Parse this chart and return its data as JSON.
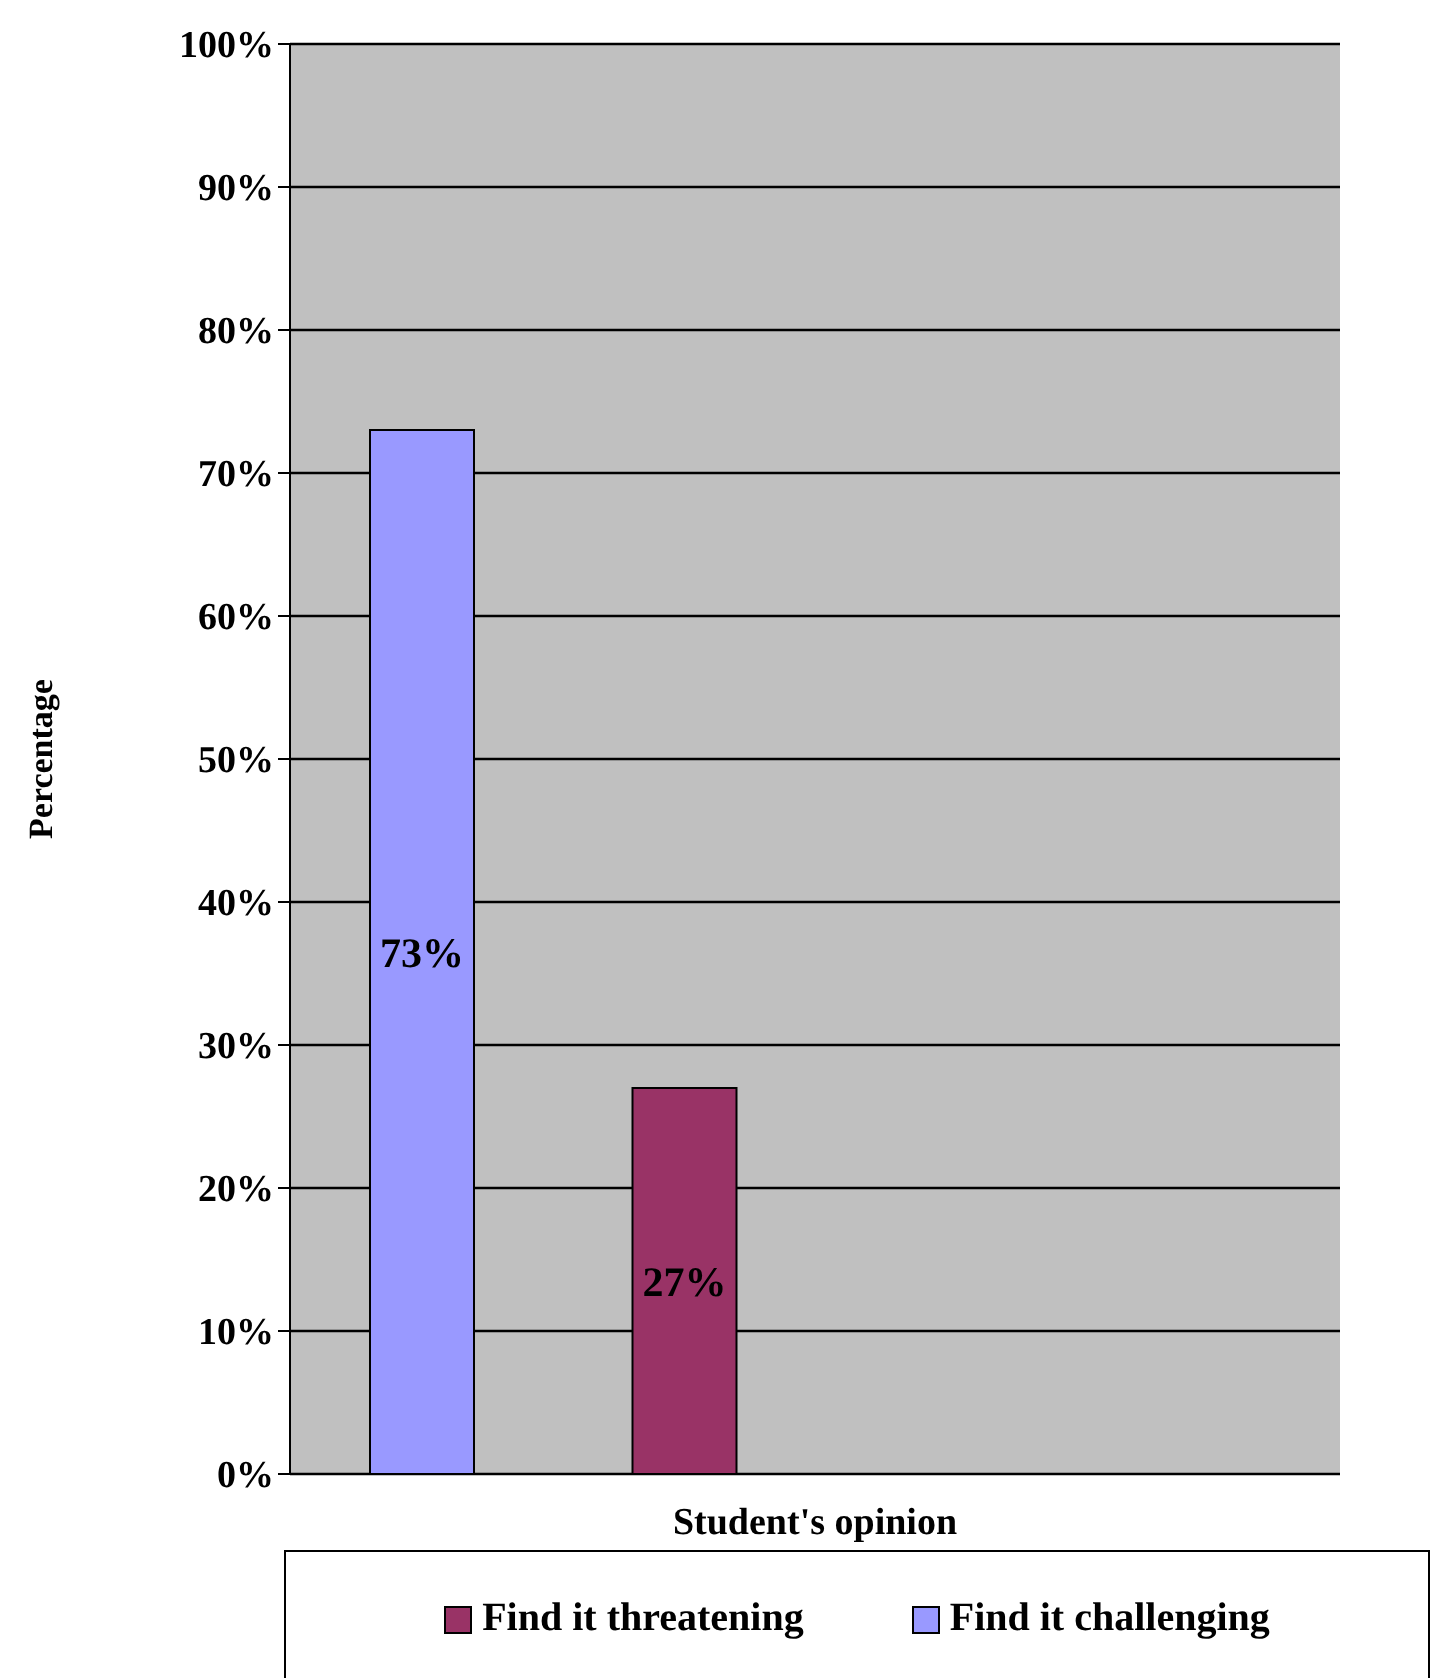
{
  "chart_data": {
    "type": "bar",
    "xlabel": "Student's opinion",
    "ylabel": "Percentage",
    "categories": [
      null,
      null,
      null,
      null
    ],
    "series": [
      {
        "name": "Find it challenging",
        "color": "#9999ff",
        "values": [
          73,
          null,
          null,
          null
        ],
        "value_labels": [
          "73%",
          null,
          null,
          null
        ]
      },
      {
        "name": "Find it threatening",
        "color": "#993366",
        "values": [
          null,
          27,
          null,
          null
        ],
        "value_labels": [
          null,
          "27%",
          null,
          null
        ]
      }
    ],
    "ylim": [
      0,
      100
    ],
    "yticks": [
      {
        "value": 0,
        "label": "0%"
      },
      {
        "value": 10,
        "label": "10%"
      },
      {
        "value": 20,
        "label": "20%"
      },
      {
        "value": 30,
        "label": "30%"
      },
      {
        "value": 40,
        "label": "40%"
      },
      {
        "value": 50,
        "label": "50%"
      },
      {
        "value": 60,
        "label": "60%"
      },
      {
        "value": 70,
        "label": "70%"
      },
      {
        "value": 80,
        "label": "80%"
      },
      {
        "value": 90,
        "label": "90%"
      },
      {
        "value": 100,
        "label": "100%"
      }
    ],
    "grid": "y",
    "legend": "bottom"
  }
}
